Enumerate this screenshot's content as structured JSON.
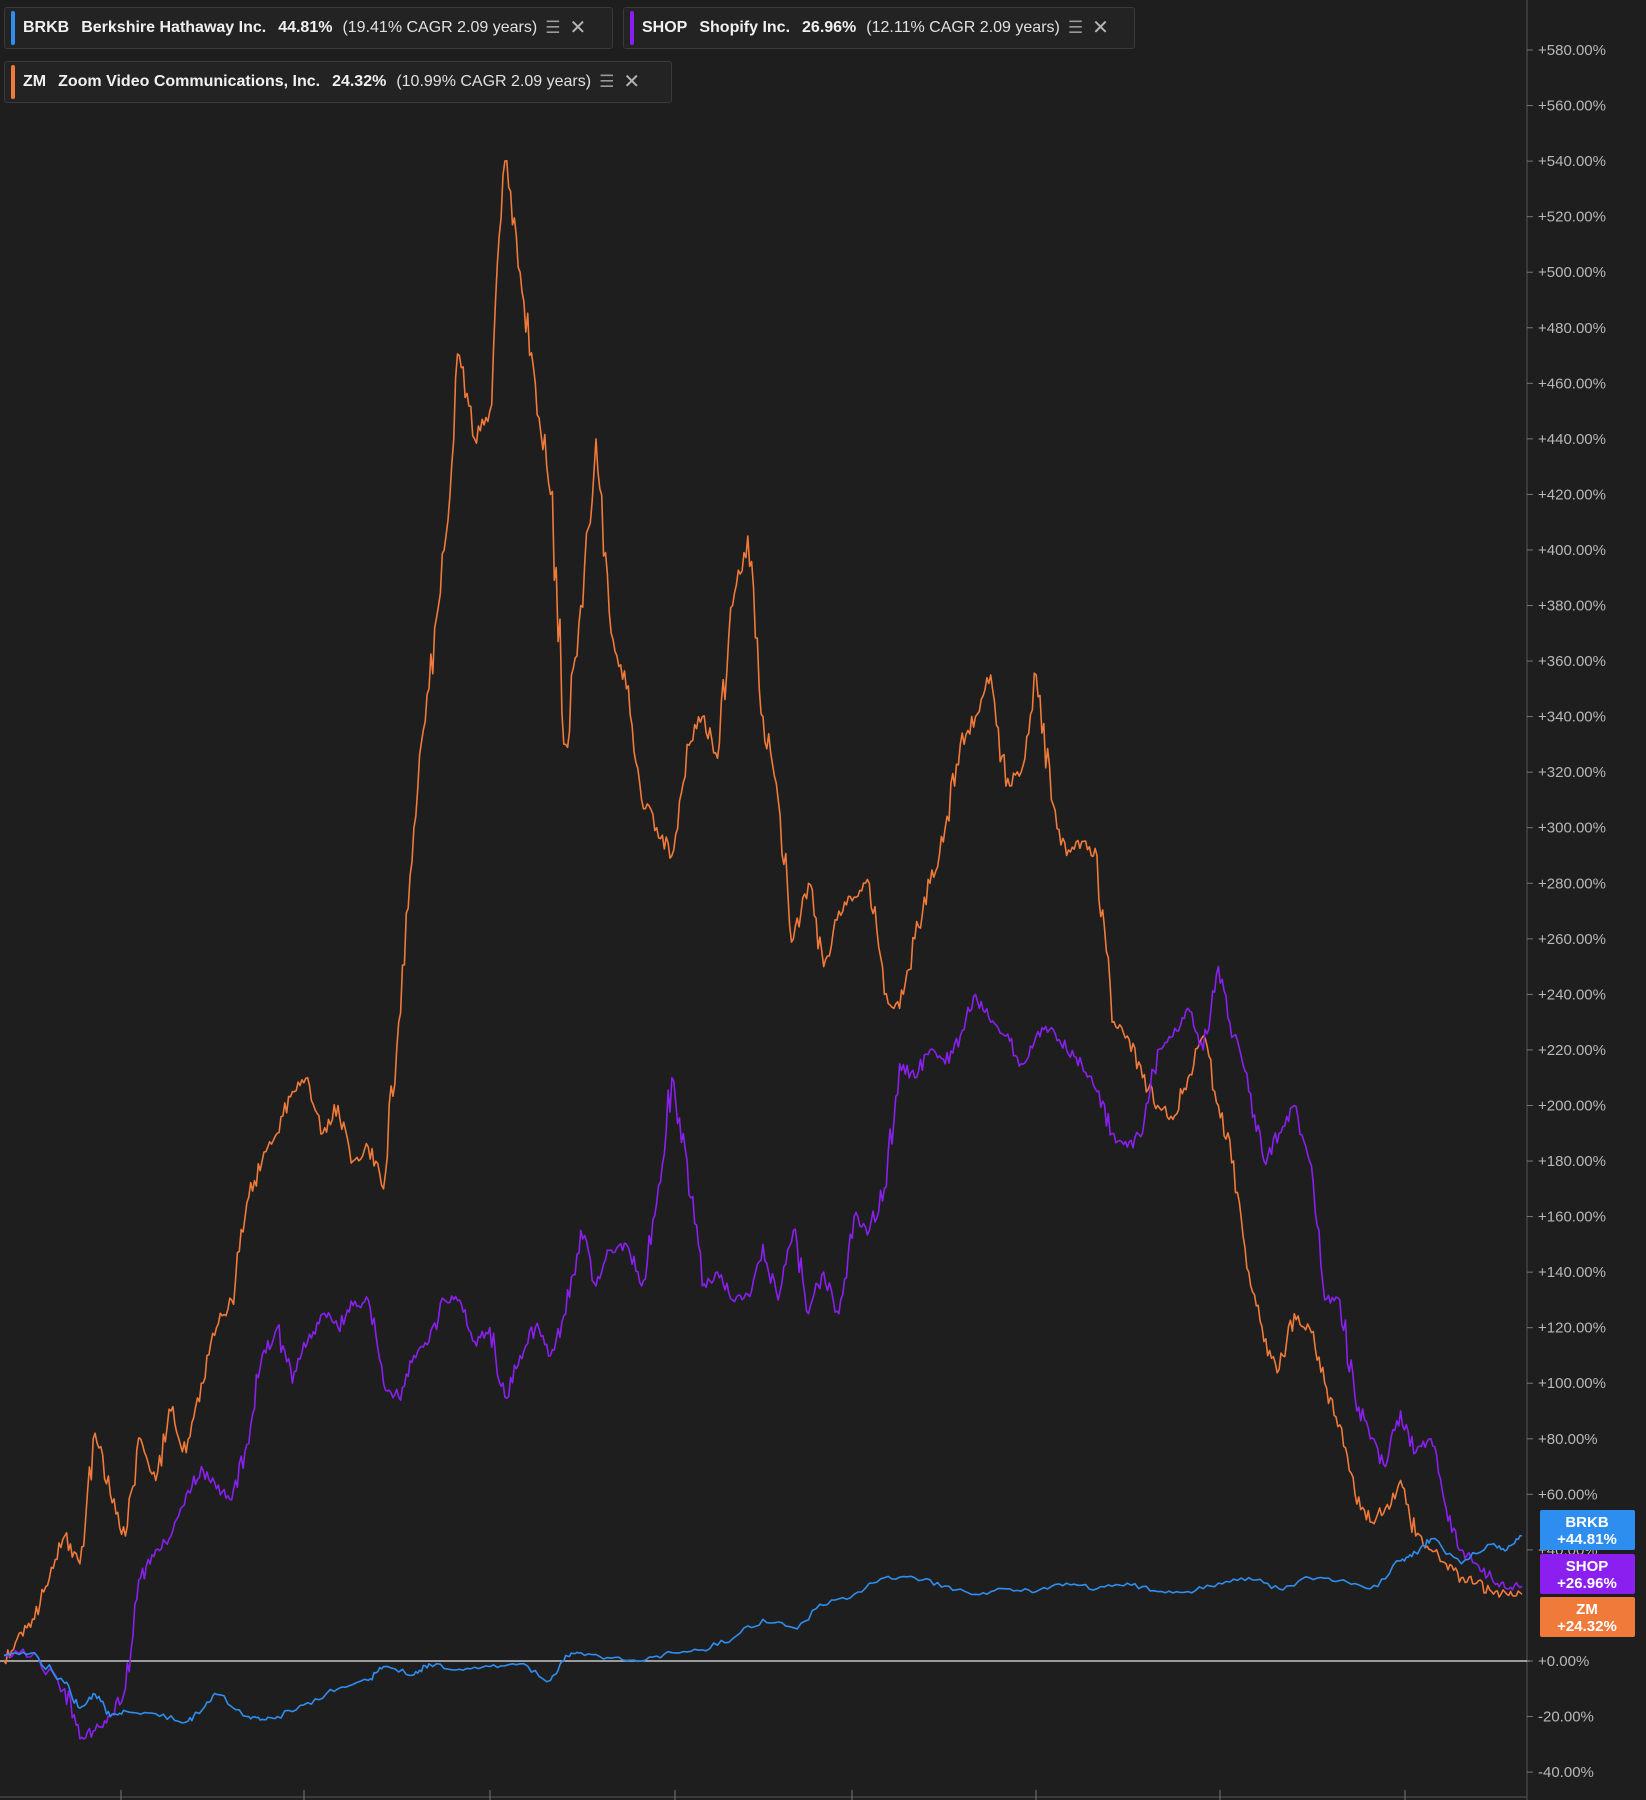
{
  "legend": [
    {
      "symbol": "BRKB",
      "name": "Berkshire Hathaway Inc.",
      "pct": "44.81%",
      "cagr": "(19.41% CAGR 2.09 years)",
      "color": "#2e8ef0"
    },
    {
      "symbol": "SHOP",
      "name": "Shopify Inc.",
      "pct": "26.96%",
      "cagr": "(12.11% CAGR 2.09 years)",
      "color": "#8a1ff0"
    },
    {
      "symbol": "ZM",
      "name": "Zoom Video Communications, Inc.",
      "pct": "24.32%",
      "cagr": "(10.99% CAGR 2.09 years)",
      "color": "#f07a3a"
    }
  ],
  "icons": {
    "stack": "stack-icon",
    "close": "close-icon"
  },
  "chart_data": {
    "type": "line",
    "title": "",
    "xlabel": "",
    "ylabel": "",
    "ylim": [
      -40,
      580
    ],
    "y_ticks": [
      "+580.00%",
      "+560.00%",
      "+540.00%",
      "+520.00%",
      "+500.00%",
      "+480.00%",
      "+460.00%",
      "+440.00%",
      "+420.00%",
      "+400.00%",
      "+380.00%",
      "+360.00%",
      "+340.00%",
      "+320.00%",
      "+300.00%",
      "+280.00%",
      "+260.00%",
      "+240.00%",
      "+220.00%",
      "+200.00%",
      "+180.00%",
      "+160.00%",
      "+140.00%",
      "+120.00%",
      "+100.00%",
      "+80.00%",
      "+60.00%",
      "+40.00%",
      "+0.00%",
      "-20.00%",
      "-40.00%"
    ],
    "y_tick_values": [
      580,
      560,
      540,
      520,
      500,
      480,
      460,
      440,
      420,
      400,
      380,
      360,
      340,
      320,
      300,
      280,
      260,
      240,
      220,
      200,
      180,
      160,
      140,
      120,
      100,
      80,
      60,
      40,
      0,
      -20,
      -40
    ],
    "x_range": [
      0,
      100
    ],
    "grid": false,
    "legend_position": "top-left",
    "series": [
      {
        "name": "BRKB",
        "color": "#2e8ef0",
        "end_label": "+44.81%",
        "x": [
          0,
          2,
          4,
          5,
          6,
          7,
          8,
          10,
          12,
          13,
          14,
          16,
          17,
          18,
          20,
          22,
          24,
          25,
          27,
          28,
          30,
          32,
          34,
          36,
          37,
          38,
          40,
          42,
          44,
          46,
          48,
          50,
          52,
          54,
          56,
          58,
          60,
          62,
          64,
          66,
          68,
          70,
          72,
          74,
          76,
          78,
          80,
          82,
          84,
          86,
          88,
          90,
          92,
          93,
          94,
          96,
          98,
          99,
          100
        ],
        "values": [
          2,
          3,
          -8,
          -17,
          -12,
          -20,
          -18,
          -19,
          -22,
          -18,
          -12,
          -20,
          -21,
          -20,
          -15,
          -10,
          -7,
          -2,
          -5,
          -1,
          -3,
          -2,
          -1,
          -7,
          2,
          3,
          1,
          0,
          3,
          4,
          8,
          15,
          12,
          20,
          24,
          30,
          30,
          27,
          24,
          26,
          25,
          28,
          26,
          28,
          25,
          25,
          28,
          30,
          26,
          30,
          29,
          26,
          36,
          39,
          44,
          35,
          42,
          40,
          45
        ]
      },
      {
        "name": "SHOP",
        "color": "#8a1ff0",
        "end_label": "+26.96%",
        "x": [
          0,
          2,
          4,
          5,
          6,
          7,
          8,
          9,
          10,
          11,
          12,
          13,
          14,
          15,
          16,
          17,
          18,
          19,
          20,
          21,
          22,
          23,
          24,
          25,
          26,
          27,
          28,
          29,
          30,
          31,
          32,
          33,
          34,
          35,
          36,
          37,
          38,
          39,
          40,
          41,
          42,
          43,
          44,
          45,
          46,
          47,
          48,
          49,
          50,
          51,
          52,
          53,
          54,
          55,
          56,
          57,
          58,
          59,
          60,
          61,
          62,
          63,
          64,
          65,
          66,
          67,
          68,
          69,
          70,
          71,
          72,
          73,
          74,
          75,
          76,
          77,
          78,
          79,
          80,
          81,
          82,
          83,
          84,
          85,
          86,
          87,
          88,
          89,
          90,
          91,
          92,
          93,
          94,
          95,
          96,
          97,
          98,
          99,
          100
        ],
        "values": [
          2,
          3,
          -10,
          -28,
          -25,
          -20,
          -10,
          30,
          40,
          45,
          60,
          70,
          62,
          58,
          78,
          110,
          120,
          100,
          115,
          125,
          120,
          128,
          130,
          100,
          95,
          110,
          115,
          130,
          130,
          115,
          120,
          95,
          110,
          120,
          110,
          125,
          155,
          135,
          148,
          150,
          135,
          165,
          210,
          180,
          135,
          140,
          130,
          132,
          150,
          130,
          155,
          125,
          140,
          125,
          160,
          155,
          170,
          215,
          210,
          220,
          215,
          225,
          240,
          230,
          225,
          215,
          225,
          228,
          220,
          215,
          205,
          190,
          185,
          190,
          220,
          225,
          235,
          220,
          250,
          225,
          205,
          180,
          190,
          200,
          180,
          130,
          130,
          95,
          80,
          70,
          90,
          75,
          80,
          55,
          40,
          35,
          30,
          26,
          27
        ]
      },
      {
        "name": "ZM",
        "color": "#f07a3a",
        "end_label": "+24.32%",
        "x": [
          0,
          1,
          2,
          3,
          4,
          5,
          6,
          7,
          8,
          9,
          10,
          11,
          12,
          13,
          14,
          15,
          16,
          17,
          18,
          19,
          20,
          21,
          22,
          23,
          24,
          25,
          26,
          27,
          28,
          29,
          30,
          31,
          32,
          33,
          34,
          35,
          36,
          37,
          38,
          39,
          40,
          41,
          42,
          43,
          44,
          45,
          46,
          47,
          48,
          49,
          50,
          51,
          52,
          53,
          54,
          55,
          56,
          57,
          58,
          59,
          60,
          61,
          62,
          63,
          64,
          65,
          66,
          67,
          68,
          69,
          70,
          71,
          72,
          73,
          74,
          75,
          76,
          77,
          78,
          79,
          80,
          81,
          82,
          83,
          84,
          85,
          86,
          87,
          88,
          89,
          90,
          91,
          92,
          93,
          94,
          95,
          96,
          97,
          98,
          99,
          100
        ],
        "values": [
          0,
          10,
          15,
          30,
          45,
          35,
          82,
          60,
          45,
          80,
          65,
          90,
          75,
          100,
          120,
          130,
          165,
          180,
          190,
          205,
          210,
          190,
          200,
          180,
          185,
          170,
          230,
          300,
          350,
          400,
          470,
          440,
          450,
          540,
          500,
          460,
          420,
          330,
          380,
          440,
          370,
          350,
          310,
          300,
          290,
          330,
          340,
          325,
          380,
          405,
          340,
          310,
          260,
          280,
          250,
          270,
          275,
          280,
          240,
          235,
          260,
          280,
          300,
          330,
          340,
          355,
          315,
          320,
          355,
          310,
          290,
          295,
          290,
          230,
          225,
          210,
          200,
          195,
          210,
          225,
          200,
          180,
          140,
          115,
          105,
          125,
          120,
          100,
          85,
          60,
          50,
          55,
          65,
          45,
          40,
          35,
          30,
          28,
          25,
          24,
          24
        ]
      }
    ]
  }
}
